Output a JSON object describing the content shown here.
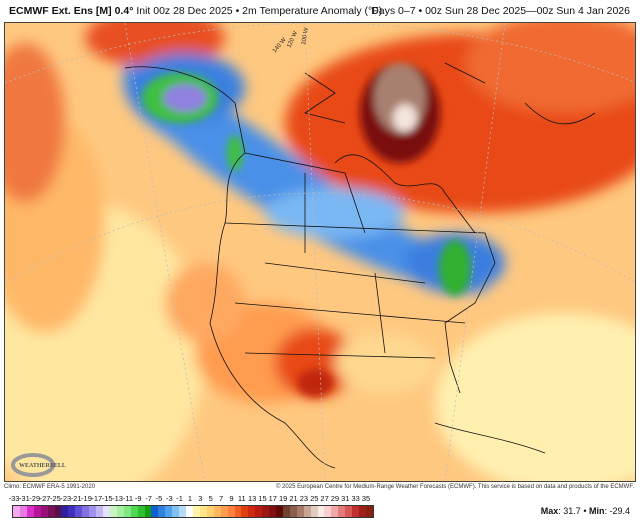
{
  "header": {
    "model": "ECMWF Ext. Ens [M]",
    "resolution": "0.4°",
    "init": "Init 00z 28 Dec 2025",
    "separator": "•",
    "field": "2m Temperature Anomaly (°F)",
    "valid": "Days 0–7 • 00z Sun 28 Dec 2025—00z Sun 4 Jan 2026"
  },
  "map": {
    "longitude_labels": [
      "140 W",
      "120 W",
      "100 W"
    ],
    "logo_text": "WeatherBELL",
    "colors": {
      "warm": "#e03010",
      "very_warm": "#801010",
      "extreme_warm": "#b08070",
      "cold": "#3080e0",
      "very_cold": "#30c030",
      "extreme_cold": "#8070e0",
      "neutral": "#ffe080"
    }
  },
  "footer": {
    "climo": "Climo: ECMWF ERA-5 1991-2020",
    "copyright": "© 2025 European Centre for Medium-Range Weather Forecasts (ECMWF). This service is based on data and products of the ECMWF."
  },
  "colorbar": {
    "ticks": [
      "-33",
      "-31",
      "-29",
      "-27",
      "-25",
      "-23",
      "-21",
      "-19",
      "-17",
      "-15",
      "-13",
      "-11",
      "-9",
      "-7",
      "-5",
      "-3",
      "-1",
      "1",
      "3",
      "5",
      "7",
      "9",
      "11",
      "13",
      "15",
      "17",
      "19",
      "21",
      "23",
      "25",
      "27",
      "29",
      "31",
      "33",
      "35"
    ],
    "colors": [
      "#f4a8f0",
      "#e878e4",
      "#d830c8",
      "#b81498",
      "#981078",
      "#781058",
      "#581048",
      "#3020a0",
      "#4030c0",
      "#6050d8",
      "#8070e0",
      "#a090f0",
      "#c4b8f4",
      "#e4e4ff",
      "#c8f4c0",
      "#a4f0a0",
      "#80e880",
      "#50d850",
      "#30c030",
      "#10a010",
      "#1060d0",
      "#3080e0",
      "#50a0f0",
      "#80c0f4",
      "#b4dcf8",
      "#ffffff",
      "#fff4a8",
      "#ffe488",
      "#ffd070",
      "#ffb860",
      "#ff9c50",
      "#ff8040",
      "#f06020",
      "#e04010",
      "#d02810",
      "#b81c10",
      "#a01410",
      "#801010",
      "#600808",
      "#704030",
      "#8c5c4c",
      "#a87c6c",
      "#c8a494",
      "#e4ccc0",
      "#f8ece4",
      "#f8d0d0",
      "#f0a8a8",
      "#e47c7c",
      "#d85858",
      "#c03030",
      "#a02018",
      "#882010"
    ]
  },
  "stats": {
    "max_label": "Max",
    "max": "31.7",
    "min_label": "Min",
    "min": "-29.4"
  }
}
